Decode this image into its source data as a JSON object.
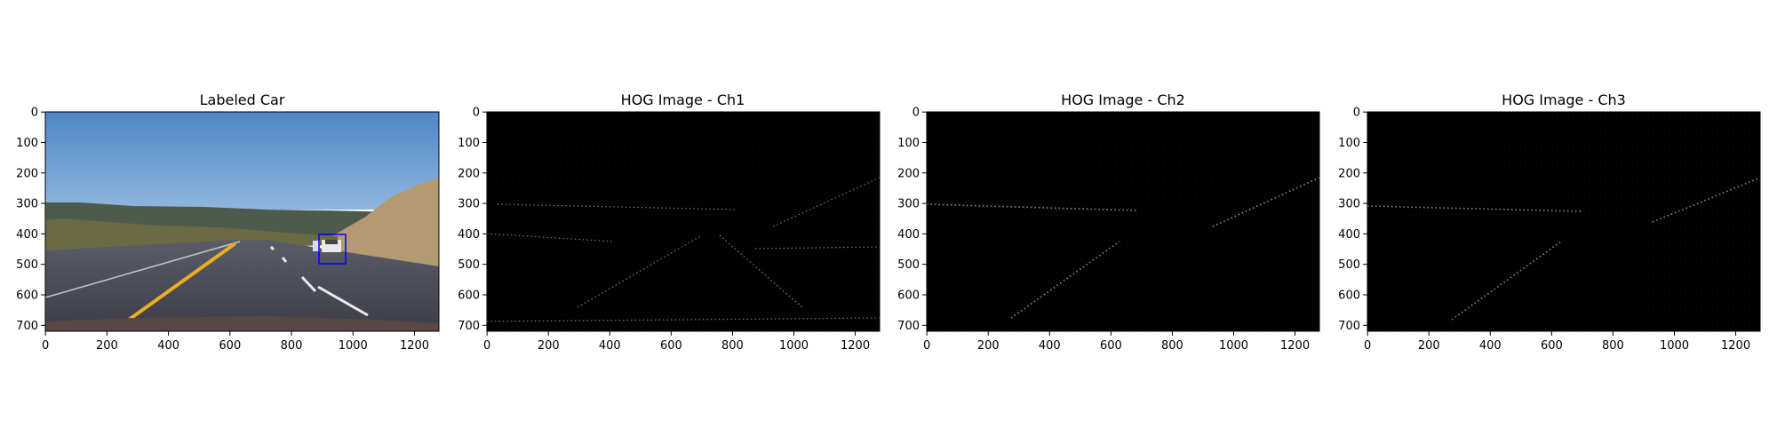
{
  "panels": [
    {
      "title": "Labeled Car",
      "kind": "photo",
      "xticks": [
        "0",
        "200",
        "400",
        "600",
        "800",
        "1000",
        "1200"
      ],
      "yticks": [
        "0",
        "100",
        "200",
        "300",
        "400",
        "500",
        "600",
        "700"
      ]
    },
    {
      "title": "HOG Image - Ch1",
      "kind": "hog",
      "xticks": [
        "0",
        "200",
        "400",
        "600",
        "800",
        "1000",
        "1200"
      ],
      "yticks": [
        "0",
        "100",
        "200",
        "300",
        "400",
        "500",
        "600",
        "700"
      ]
    },
    {
      "title": "HOG Image - Ch2",
      "kind": "hog",
      "xticks": [
        "0",
        "200",
        "400",
        "600",
        "800",
        "1000",
        "1200"
      ],
      "yticks": [
        "0",
        "100",
        "200",
        "300",
        "400",
        "500",
        "600",
        "700"
      ]
    },
    {
      "title": "HOG Image - Ch3",
      "kind": "hog",
      "xticks": [
        "0",
        "200",
        "400",
        "600",
        "800",
        "1000",
        "1200"
      ],
      "yticks": [
        "0",
        "100",
        "200",
        "300",
        "400",
        "500",
        "600",
        "700"
      ]
    }
  ],
  "colors": {
    "bounding_box": "#0000ff",
    "hog_background": "#000000",
    "sky": "#5e8fc7",
    "road": "#4a4a58",
    "lane_yellow": "#e8b020"
  }
}
